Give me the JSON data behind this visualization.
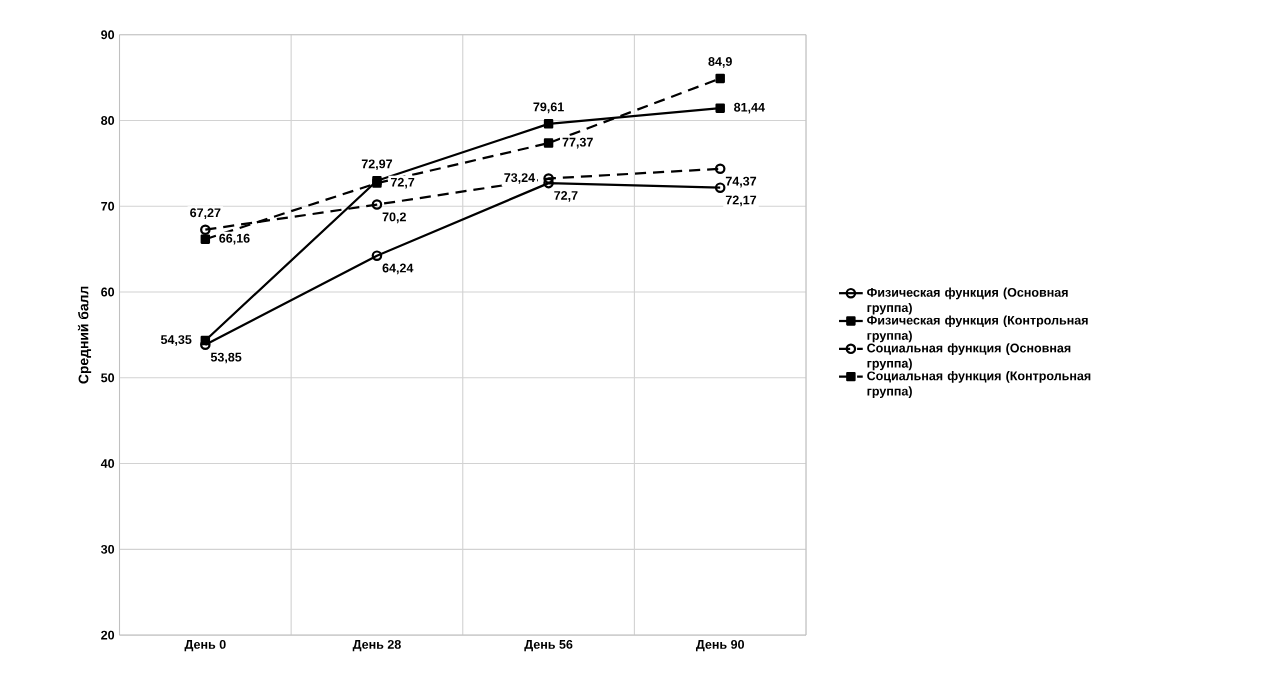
{
  "chart_data": {
    "type": "line",
    "categories": [
      "День 0",
      "День 28",
      "День 56",
      "День 90"
    ],
    "ylabel": "Средний балл",
    "ylim": [
      20,
      90
    ],
    "yticks": [
      20,
      30,
      40,
      50,
      60,
      70,
      80,
      90
    ],
    "grid": true,
    "legend": "right",
    "series": [
      {
        "name": "Физическая функция (Основная группа)",
        "color": "#000000",
        "marker": "circle",
        "line_style": "solid",
        "values": [
          53.85,
          64.24,
          72.7,
          72.17
        ],
        "value_labels": [
          "53,85",
          "64,24",
          "72,7",
          "72,17"
        ]
      },
      {
        "name": "Физическая функция (Контрольная группа)",
        "color": "#000000",
        "marker": "square",
        "line_style": "solid",
        "values": [
          54.35,
          72.97,
          79.61,
          81.44
        ],
        "value_labels": [
          "54,35",
          "72,97",
          "79,61",
          "81,44"
        ]
      },
      {
        "name": "Социальная функция (Основная группа)",
        "color": "#000000",
        "marker": "circle",
        "line_style": "dashed",
        "values": [
          67.27,
          70.2,
          73.24,
          74.37
        ],
        "value_labels": [
          "67,27",
          "70,2",
          "73,24",
          "74,37"
        ]
      },
      {
        "name": "Социальная функция (Контрольная группа)",
        "color": "#000000",
        "marker": "square",
        "line_style": "dashed",
        "values": [
          66.16,
          72.7,
          77.37,
          84.9
        ],
        "value_labels": [
          "66,16",
          "72,7",
          "77,37",
          "84,9"
        ]
      }
    ]
  }
}
